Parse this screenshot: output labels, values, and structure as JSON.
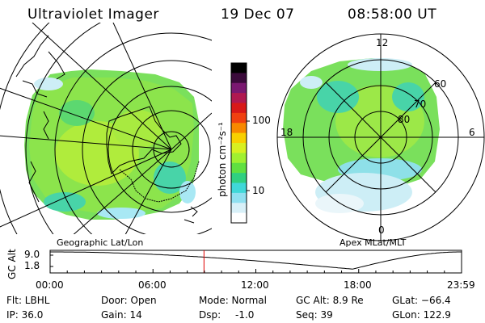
{
  "header": {
    "title": "Ultraviolet Imager",
    "date": "19 Dec 07",
    "time": "08:58:00 UT"
  },
  "left_panel": {
    "caption": "Geographic Lat/Lon"
  },
  "right_panel": {
    "caption": "Apex MLat/MLT",
    "mlt_labels": [
      "12",
      "18",
      "6",
      "0"
    ],
    "mlat_labels": [
      "60",
      "70",
      "80"
    ]
  },
  "colorbar": {
    "unit_label": "photon cm⁻²s⁻¹",
    "ticks": [
      "100",
      "10"
    ],
    "colors": [
      "#000000",
      "#3a0a3a",
      "#7a1870",
      "#b01850",
      "#d81818",
      "#f04010",
      "#f88800",
      "#f8d000",
      "#d8f020",
      "#a0f030",
      "#60e040",
      "#30d080",
      "#40d8d8",
      "#90e0f0",
      "#d8f0f8",
      "#ffffff"
    ]
  },
  "altitude_plot": {
    "ylabel": "GC Alt",
    "ytick_top": "9.0",
    "ytick_bottom": "1.8",
    "time_ticks": [
      "00:00",
      "06:00",
      "12:00",
      "18:00",
      "23:59"
    ],
    "current_time_fraction": 0.374,
    "marker_color": "#e00000"
  },
  "info": {
    "flt": "Flt: LBHL",
    "ip": "IP: 36.0",
    "door": "Door: Open",
    "gain": "Gain: 14",
    "mode": "Mode: Normal",
    "dsp": "Dsp:",
    "dsp_val": "-1.0",
    "gcalt": "GC Alt: 8.9 Re",
    "seq": "Seq: 39",
    "glat": "GLat: −66.4",
    "glon": "GLon: 122.9"
  }
}
